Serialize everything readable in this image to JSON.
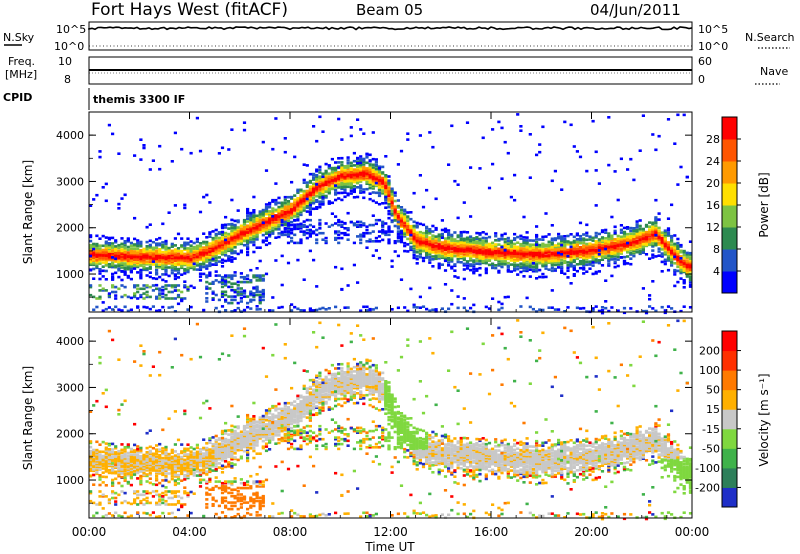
{
  "header": {
    "title": "Fort Hays West (fitACF)",
    "beam": "Beam 05",
    "date": "04/Jun/2011"
  },
  "top_panels": {
    "nsky_label": "N.Sky",
    "nsky_tick_top": "10^5",
    "nsky_tick_bottom": "10^0",
    "nsearch_label": "N.Search",
    "nsearch_tick_top": "10^5",
    "nsearch_tick_bottom": "10^0",
    "freq_label_1": "Freq.",
    "freq_label_2": "[MHz]",
    "freq_tick_top": "10",
    "freq_tick_bottom": "8",
    "nave_label": "Nave",
    "nave_tick_top": "60",
    "nave_tick_bottom": "0",
    "cpid_label": "CPID",
    "cpid_value": "themis 3300 IF"
  },
  "chart_data": [
    {
      "type": "heatmap",
      "name": "Power",
      "ylabel": "Slant Range [km]",
      "xlabel": "",
      "xlim": [
        0,
        24
      ],
      "ylim": [
        180,
        4500
      ],
      "y_ticks": [
        "1000",
        "2000",
        "3000",
        "4000"
      ],
      "colorbar_label": "Power [dB]",
      "colorbar_ticks": [
        "4",
        "8",
        "12",
        "16",
        "20",
        "24",
        "28"
      ],
      "colorbar_colors": [
        "#0000ff",
        "#2255c8",
        "#2d8a50",
        "#7dc342",
        "#ffdf00",
        "#ff9a00",
        "#ff5500",
        "#ff0000"
      ],
      "echo_band": {
        "description_free": true,
        "ridge_km_vs_hour": [
          [
            0,
            1450
          ],
          [
            2,
            1400
          ],
          [
            4,
            1380
          ],
          [
            5,
            1600
          ],
          [
            6,
            1900
          ],
          [
            7,
            2150
          ],
          [
            8,
            2400
          ],
          [
            9,
            2900
          ],
          [
            10,
            3150
          ],
          [
            11,
            3200
          ],
          [
            11.7,
            3000
          ],
          [
            12.2,
            2300
          ],
          [
            13,
            1750
          ],
          [
            14,
            1600
          ],
          [
            16,
            1500
          ],
          [
            18,
            1450
          ],
          [
            20,
            1550
          ],
          [
            21.5,
            1700
          ],
          [
            22.5,
            1900
          ],
          [
            23.5,
            1300
          ],
          [
            24,
            1150
          ]
        ]
      }
    },
    {
      "type": "heatmap",
      "name": "Velocity",
      "ylabel": "Slant Range [km]",
      "xlabel": "Time UT",
      "xlim": [
        0,
        24
      ],
      "ylim": [
        180,
        4500
      ],
      "x_ticks": [
        "00:00",
        "04:00",
        "08:00",
        "12:00",
        "16:00",
        "20:00",
        "00:00"
      ],
      "y_ticks": [
        "1000",
        "2000",
        "3000",
        "4000"
      ],
      "colorbar_label": "Velocity [m s⁻¹]",
      "colorbar_ticks": [
        "200",
        "100",
        "50",
        "15",
        "-15",
        "-50",
        "-100",
        "-200"
      ],
      "colorbar_colors": [
        "#1f2fc8",
        "#2d7f5a",
        "#3fb24a",
        "#7fd83f",
        "#c8c8c8",
        "#ffb000",
        "#ff7a00",
        "#ff3000",
        "#ff0000"
      ]
    }
  ]
}
